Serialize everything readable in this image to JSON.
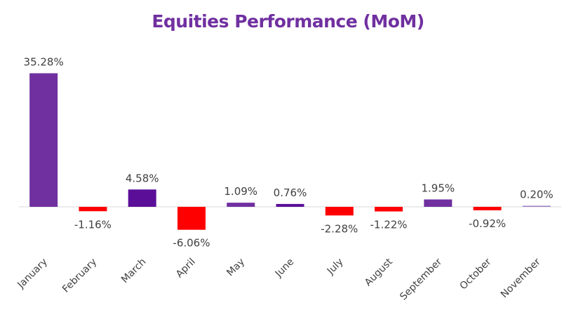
{
  "chart_data": {
    "type": "bar",
    "title": "Equities Performance (MoM)",
    "xlabel": "",
    "ylabel": "",
    "categories": [
      "January",
      "February",
      "March",
      "April",
      "May",
      "June",
      "July",
      "August",
      "September",
      "October",
      "November"
    ],
    "values": [
      35.28,
      -1.16,
      4.58,
      -6.06,
      1.09,
      0.76,
      -2.28,
      -1.22,
      1.95,
      -0.92,
      0.2
    ],
    "data_labels": [
      "35.28%",
      "-1.16%",
      "4.58%",
      "-6.06%",
      "1.09%",
      "0.76%",
      "-2.28%",
      "-1.22%",
      "1.95%",
      "-0.92%",
      "0.20%"
    ],
    "bar_colors": [
      "#7030a0",
      "#ff0000",
      "#5b0f99",
      "#ff0000",
      "#7030a0",
      "#5b0f99",
      "#ff0000",
      "#ff0000",
      "#7030a0",
      "#ff0000",
      "#9b7fc4"
    ],
    "ylim": [
      -7,
      36
    ],
    "grid": false,
    "legend": "none",
    "colors": {
      "title": "#7030a0",
      "positive": "#7030a0",
      "negative": "#ff0000",
      "axis": "#d9d9d9",
      "text": "#404040"
    }
  }
}
